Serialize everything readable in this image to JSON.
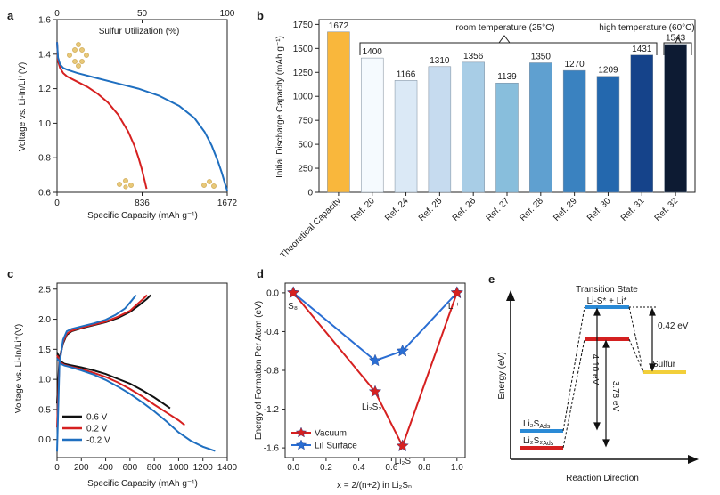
{
  "chart_data": [
    {
      "panel": "a",
      "type": "line",
      "xlabel": "Specific Capacity (mAh g⁻¹)",
      "ylabel": "Voltage vs. Li-In/Li⁺(V)",
      "top_xlabel": "Sulfur Utilization (%)",
      "xlim": [
        0,
        1672
      ],
      "ylim": [
        0.6,
        1.6
      ],
      "x_ticks": [
        "0",
        "836",
        "1672"
      ],
      "y_ticks": [
        "0.6",
        "0.8",
        "1.0",
        "1.2",
        "1.4",
        "1.6"
      ],
      "top_ticks": [
        "0",
        "50",
        "100"
      ],
      "series": [
        {
          "name": "red",
          "color": "#d62020",
          "x": [
            0,
            10,
            30,
            60,
            100,
            200,
            300,
            400,
            500,
            600,
            700,
            760,
            800,
            830,
            860,
            880
          ],
          "y": [
            1.47,
            1.36,
            1.32,
            1.29,
            1.27,
            1.24,
            1.21,
            1.17,
            1.12,
            1.05,
            0.95,
            0.87,
            0.8,
            0.74,
            0.67,
            0.62
          ]
        },
        {
          "name": "blue",
          "color": "#1f6fc0",
          "x": [
            0,
            10,
            30,
            60,
            100,
            200,
            400,
            600,
            800,
            1000,
            1200,
            1350,
            1450,
            1520,
            1580,
            1620,
            1650,
            1672
          ],
          "y": [
            1.47,
            1.38,
            1.34,
            1.32,
            1.31,
            1.29,
            1.26,
            1.23,
            1.2,
            1.16,
            1.1,
            1.03,
            0.95,
            0.87,
            0.78,
            0.71,
            0.65,
            0.61
          ]
        }
      ]
    },
    {
      "panel": "b",
      "type": "bar",
      "ylabel": "Initial Discharge Capacity (mAh g⁻¹)",
      "ylim": [
        0,
        1800
      ],
      "y_ticks": [
        "0",
        "250",
        "500",
        "750",
        "1000",
        "1250",
        "1500",
        "1750"
      ],
      "categories": [
        "Theoretical Capacity",
        "Ref. 20",
        "Ref. 24",
        "Ref. 25",
        "Ref. 26",
        "Ref. 27",
        "Ref. 28",
        "Ref. 29",
        "Ref. 30",
        "Ref. 31",
        "Ref. 32"
      ],
      "values": [
        1672,
        1400,
        1166,
        1310,
        1356,
        1139,
        1350,
        1270,
        1209,
        1431,
        1543
      ],
      "value_labels": [
        "1672",
        "1400",
        "1166",
        "1310",
        "1356",
        "1139",
        "1350",
        "1270",
        "1209",
        "1431",
        "1543"
      ],
      "colors": [
        "#f9b73c",
        "#f5fafe",
        "#dbe9f6",
        "#c6dbef",
        "#a8cde6",
        "#88bedc",
        "#5fa0d0",
        "#3a82c0",
        "#2468ae",
        "#15438a",
        "#0d1b33"
      ],
      "annotations": [
        "room temperature (25°C)",
        "high temperature (60°C)"
      ]
    },
    {
      "panel": "c",
      "type": "line",
      "xlabel": "Specific Capacity (mAh g⁻¹)",
      "ylabel": "Voltage vs. Li-In/Li⁺(V)",
      "xlim": [
        0,
        1400
      ],
      "ylim": [
        -0.3,
        2.6
      ],
      "x_ticks": [
        "0",
        "200",
        "400",
        "600",
        "800",
        "1000",
        "1200",
        "1400"
      ],
      "y_ticks": [
        "0.0",
        "0.5",
        "1.0",
        "1.5",
        "2.0",
        "2.5"
      ],
      "legend": [
        "0.6 V",
        "0.2 V",
        "-0.2 V"
      ],
      "series": [
        {
          "name": "0.6 V",
          "color": "#111111",
          "discharge_x": [
            0,
            30,
            60,
            100,
            200,
            300,
            400,
            500,
            600,
            700,
            800,
            880,
            930
          ],
          "discharge_y": [
            1.45,
            1.3,
            1.26,
            1.24,
            1.2,
            1.15,
            1.09,
            1.01,
            0.93,
            0.82,
            0.7,
            0.59,
            0.52
          ],
          "charge_x": [
            0,
            20,
            50,
            80,
            120,
            200,
            300,
            400,
            500,
            600,
            680,
            740,
            770
          ],
          "charge_y": [
            0.6,
            1.35,
            1.6,
            1.74,
            1.8,
            1.85,
            1.9,
            1.95,
            2.02,
            2.12,
            2.24,
            2.34,
            2.4
          ]
        },
        {
          "name": "0.2 V",
          "color": "#d62020",
          "discharge_x": [
            0,
            30,
            60,
            100,
            200,
            300,
            400,
            500,
            600,
            700,
            800,
            900,
            1000,
            1050
          ],
          "discharge_y": [
            1.4,
            1.28,
            1.24,
            1.22,
            1.17,
            1.11,
            1.04,
            0.95,
            0.84,
            0.72,
            0.58,
            0.45,
            0.32,
            0.24
          ],
          "charge_x": [
            0,
            20,
            50,
            80,
            120,
            200,
            300,
            400,
            500,
            600,
            660,
            710,
            740
          ],
          "charge_y": [
            0.2,
            1.3,
            1.62,
            1.76,
            1.81,
            1.86,
            1.91,
            1.96,
            2.04,
            2.14,
            2.25,
            2.34,
            2.4
          ]
        },
        {
          "name": "-0.2 V",
          "color": "#1f6fc0",
          "discharge_x": [
            0,
            30,
            60,
            100,
            200,
            300,
            400,
            500,
            600,
            700,
            800,
            900,
            1000,
            1100,
            1200,
            1300
          ],
          "discharge_y": [
            1.35,
            1.26,
            1.23,
            1.21,
            1.15,
            1.08,
            0.99,
            0.88,
            0.76,
            0.62,
            0.47,
            0.3,
            0.12,
            -0.02,
            -0.12,
            -0.19
          ],
          "charge_x": [
            0,
            20,
            50,
            80,
            120,
            200,
            300,
            400,
            480,
            560,
            610,
            650
          ],
          "charge_y": [
            -0.2,
            1.25,
            1.66,
            1.8,
            1.84,
            1.88,
            1.93,
            1.99,
            2.07,
            2.18,
            2.3,
            2.4
          ]
        }
      ]
    },
    {
      "panel": "d",
      "type": "scatter",
      "xlabel": "x = 2/(n+2) in Li₂Sₙ",
      "ylabel": "Energy of Formation Per Atom (eV)",
      "xlim": [
        -0.05,
        1.05
      ],
      "ylim": [
        -1.7,
        0.1
      ],
      "x_ticks": [
        "0.0",
        "0.2",
        "0.4",
        "0.6",
        "0.8",
        "1.0"
      ],
      "y_ticks": [
        "0.0",
        "-0.4",
        "-0.8",
        "-1.2",
        "-1.6"
      ],
      "legend": [
        "Vacuum",
        "LiI Surface"
      ],
      "series": [
        {
          "name": "Vacuum",
          "color": "#d62020",
          "x": [
            0,
            0.5,
            0.667,
            1.0
          ],
          "y": [
            0,
            -1.02,
            -1.58,
            0
          ]
        },
        {
          "name": "LiI Surface",
          "color": "#2a6ed3",
          "x": [
            0,
            0.5,
            0.667,
            1.0
          ],
          "y": [
            0,
            -0.7,
            -0.6,
            0
          ]
        }
      ],
      "point_labels": [
        "S8",
        "Li2S2",
        "Li2S",
        "Li+"
      ]
    },
    {
      "panel": "e",
      "type": "diagram",
      "xlabel": "Reaction Direction",
      "ylabel": "Energy (eV)",
      "title": "Transition State",
      "levels": [
        "Li-S* + Li*",
        "Sulfur",
        "Li2S Ads",
        "Li2S2 Ads"
      ],
      "values": [
        "0.42 eV",
        "4.10 eV",
        "3.78 eV"
      ]
    }
  ],
  "labels": {
    "a": "a",
    "b": "b",
    "c": "c",
    "d": "d",
    "e": "e"
  },
  "e_levels": {
    "ts": "Li-S* + Li*",
    "sulfur": "Sulfur",
    "li2s": "Li₂S",
    "li2s_sub": "Ads",
    "li2s2": "Li₂S₂",
    "li2s2_sub": "Ads"
  },
  "d_labels": {
    "s8": "S₈",
    "li2s2": "Li₂S₂",
    "li2s": "Li₂S",
    "li": "Li⁺"
  }
}
